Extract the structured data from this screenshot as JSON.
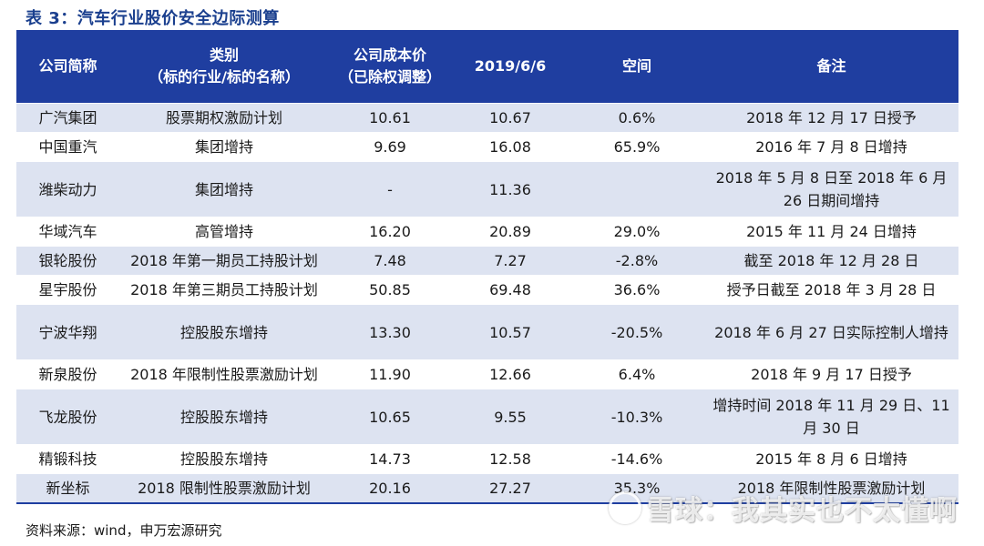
{
  "title": "表 3：汽车行业股价安全边际测算",
  "table": {
    "headers": {
      "name": "公司简称",
      "category_line1": "类别",
      "category_line2": "（标的行业/标的名称）",
      "cost_line1": "公司成本价",
      "cost_line2": "（已除权调整）",
      "price": "2019/6/6",
      "space": "空间",
      "note": "备注"
    },
    "rows": [
      {
        "name": "广汽集团",
        "category": "股票期权激励计划",
        "cost": "10.61",
        "price": "10.67",
        "space": "0.6%",
        "note": "2018 年 12 月 17 日授予"
      },
      {
        "name": "中国重汽",
        "category": "集团增持",
        "cost": "9.69",
        "price": "16.08",
        "space": "65.9%",
        "note": "2016 年 7 月 8 日增持"
      },
      {
        "name": "潍柴动力",
        "category": "集团增持",
        "cost": "-",
        "price": "11.36",
        "space": "",
        "note": "2018 年 5 月 8 日至 2018 年 6 月 26 日期间增持"
      },
      {
        "name": "华域汽车",
        "category": "高管增持",
        "cost": "16.20",
        "price": "20.89",
        "space": "29.0%",
        "note": "2015 年 11 月 24 日增持"
      },
      {
        "name": "银轮股份",
        "category": "2018 年第一期员工持股计划",
        "cost": "7.48",
        "price": "7.27",
        "space": "-2.8%",
        "note": "截至 2018 年 12 月 28 日"
      },
      {
        "name": "星宇股份",
        "category": "2018 年第三期员工持股计划",
        "cost": "50.85",
        "price": "69.48",
        "space": "36.6%",
        "note": "授予日截至 2018 年 3 月 28 日"
      },
      {
        "name": "宁波华翔",
        "category": "控股股东增持",
        "cost": "13.30",
        "price": "10.57",
        "space": "-20.5%",
        "note": "2018 年 6 月 27 日实际控制人增持"
      },
      {
        "name": "新泉股份",
        "category": "2018 年限制性股票激励计划",
        "cost": "11.90",
        "price": "12.66",
        "space": "6.4%",
        "note": "2018 年 9 月 17 日授予"
      },
      {
        "name": "飞龙股份",
        "category": "控股股东增持",
        "cost": "10.65",
        "price": "9.55",
        "space": "-10.3%",
        "note": "增持时间 2018 年 11 月 29 日、11 月 30 日"
      },
      {
        "name": "精锻科技",
        "category": "控股股东增持",
        "cost": "14.73",
        "price": "12.58",
        "space": "-14.6%",
        "note": "2015 年 8 月 6 日增持"
      },
      {
        "name": "新坐标",
        "category": "2018 限制性股票激励计划",
        "cost": "20.16",
        "price": "27.27",
        "space": "35.3%",
        "note": "2018 年限制性股票激励计划"
      }
    ]
  },
  "footer": "资料来源：wind，申万宏源研究",
  "watermark": "雪球：我其实也不太懂啊",
  "colors": {
    "header_bg": "#1f3ea0",
    "stripe": "#dde3f1",
    "title": "#1a3f8e"
  }
}
